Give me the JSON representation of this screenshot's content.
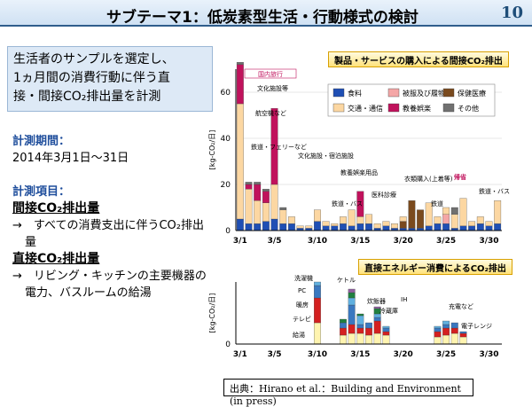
{
  "header": {
    "title": "サブテーマ1：低炭素型生活・行動様式の検討",
    "page_number": "10"
  },
  "summary_box": {
    "lines": [
      "生活者のサンプルを選定し、",
      "1ヵ月間の消費行動に伴う直",
      "接・間接CO₂排出量を計測"
    ]
  },
  "period": {
    "heading": "計測期間：",
    "value": "2014年3月1日～31日"
  },
  "items": {
    "heading": "計測項目：",
    "indirect_title": "間接CO₂排出量",
    "indirect_desc": "→　すべての消費支出に伴うCO₂排出量",
    "direct_title": "直接CO₂排出量",
    "direct_desc": "→　リビング・キッチンの主要機器の電力、バスルームの給湯"
  },
  "source": "出典：Hirano et al.：Building and Environment (in press)",
  "colors": {
    "food": "#1f4fb4",
    "clothing": "#f4a6a6",
    "medical": "#7a4a1e",
    "transport": "#fcd7a2",
    "culture": "#c0125c",
    "other": "#707070"
  },
  "chart_data": [
    {
      "type": "bar",
      "title": "製品・サービスの購入による間接CO₂排出",
      "ylabel": "[kg-CO₂/日]",
      "ylim": [
        0,
        70
      ],
      "yticks": [
        0,
        20,
        40,
        60
      ],
      "xticks": [
        "3/1",
        "3/5",
        "3/10",
        "3/15",
        "3/20",
        "3/25",
        "3/30"
      ],
      "legend": [
        "食料",
        "被服及び履物",
        "保健医療",
        "交通・通信",
        "教養娯楽",
        "その他"
      ],
      "categories": [
        1,
        2,
        3,
        4,
        5,
        6,
        7,
        8,
        9,
        10,
        11,
        12,
        13,
        14,
        15,
        16,
        17,
        18,
        19,
        20,
        21,
        22,
        23,
        24,
        25,
        26,
        27,
        28,
        29,
        30,
        31
      ],
      "series": [
        {
          "name": "食料",
          "values": [
            5,
            3,
            3,
            4,
            5,
            3,
            3,
            1,
            1,
            4,
            2,
            2,
            3,
            2,
            3,
            3,
            1,
            2,
            1,
            1,
            1,
            1,
            2,
            3,
            3,
            1,
            2,
            2,
            3,
            2,
            3
          ]
        },
        {
          "name": "被服及び履物",
          "values": [
            0,
            0,
            0,
            0,
            0,
            0,
            0,
            0,
            0,
            0,
            0,
            0,
            0,
            0,
            0,
            0,
            0,
            0,
            0,
            0,
            0,
            0,
            0,
            0,
            4,
            0,
            0,
            0,
            0,
            0,
            0
          ]
        },
        {
          "name": "保健医療",
          "values": [
            0,
            0,
            0,
            0,
            0,
            0,
            0,
            0,
            0,
            0,
            0,
            0,
            0,
            0,
            0,
            0,
            0,
            0,
            0,
            3,
            12,
            8,
            0,
            0,
            0,
            0,
            0,
            0,
            0,
            0,
            0
          ]
        },
        {
          "name": "交通・通信",
          "values": [
            50,
            15,
            10,
            8,
            15,
            6,
            3,
            1,
            1,
            5,
            2,
            1,
            3,
            7,
            3,
            4,
            2,
            2,
            2,
            2,
            0,
            0,
            10,
            3,
            3,
            6,
            12,
            2,
            3,
            2,
            10
          ]
        },
        {
          "name": "教養娯楽",
          "values": [
            17,
            2,
            7,
            5,
            33,
            0,
            0,
            0,
            0,
            0,
            0,
            0,
            0,
            0,
            11,
            0,
            0,
            0,
            0,
            0,
            0,
            0,
            0,
            0,
            0,
            0,
            0,
            0,
            0,
            0,
            0
          ]
        },
        {
          "name": "その他",
          "values": [
            1,
            1,
            1,
            1,
            0,
            1,
            0,
            0,
            0,
            0,
            0,
            0,
            0,
            0,
            0,
            0,
            0,
            0,
            0,
            0,
            0,
            0,
            0,
            0,
            0,
            3,
            0,
            0,
            0,
            0,
            0
          ]
        }
      ],
      "annotations": [
        "国内旅行",
        "文化施設等",
        "航空機など",
        "鉄道・フェリーなど",
        "文化施設・宿泊施設",
        "教養娯楽用品",
        "鉄道・バス",
        "医科診療",
        "衣類購入(上着等)",
        "帰省",
        "鉄道",
        "鉄道・バス"
      ]
    },
    {
      "type": "bar",
      "title": "直接エネルギー消費によるCO₂排出",
      "ylabel": "[kg-CO₂/日]",
      "yticks": [
        "0"
      ],
      "xticks": [
        "3/1",
        "3/5",
        "3/10",
        "3/15",
        "3/20",
        "3/25",
        "3/30"
      ],
      "annotations": [
        "洗濯機",
        "PC",
        "ケトル",
        "暖房",
        "テレビ",
        "炊飯器",
        "IH",
        "給湯",
        "冷蔵庫",
        "充電など",
        "電子レンジ"
      ]
    }
  ]
}
